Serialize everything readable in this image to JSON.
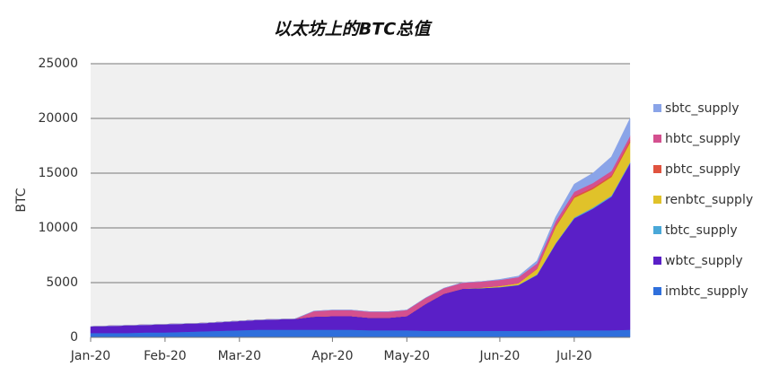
{
  "chart_data": {
    "type": "stacked-area",
    "title": "以太坊上的BTC总值",
    "y_label": "BTC",
    "categories": [
      "Jan-20",
      null,
      null,
      null,
      "Feb-20",
      null,
      null,
      null,
      "Mar-20",
      null,
      null,
      null,
      null,
      "Apr-20",
      null,
      null,
      null,
      "May-20",
      null,
      null,
      null,
      null,
      "Jun-20",
      null,
      null,
      null,
      "Jul-20",
      null,
      null,
      null
    ],
    "series": [
      {
        "name": "imbtc_supply",
        "color": "#2f6fdc",
        "values": [
          400,
          400,
          400,
          450,
          450,
          500,
          550,
          600,
          650,
          700,
          700,
          700,
          700,
          700,
          700,
          650,
          650,
          650,
          600,
          600,
          600,
          600,
          600,
          600,
          600,
          650,
          650,
          650,
          650,
          700
        ]
      },
      {
        "name": "wbtc_supply",
        "color": "#5a1fc7",
        "values": [
          600,
          650,
          700,
          700,
          750,
          750,
          750,
          800,
          850,
          900,
          950,
          1000,
          1200,
          1250,
          1250,
          1150,
          1150,
          1300,
          2450,
          3400,
          3850,
          3900,
          3980,
          4170,
          5100,
          7900,
          10220,
          11100,
          12200,
          15200
        ]
      },
      {
        "name": "tbtc_supply",
        "color": "#4aa8d8",
        "values": [
          0,
          0,
          0,
          0,
          0,
          0,
          0,
          0,
          0,
          0,
          0,
          0,
          0,
          0,
          0,
          0,
          0,
          0,
          0,
          0,
          0,
          0,
          20,
          30,
          50,
          50,
          80,
          100,
          100,
          100
        ]
      },
      {
        "name": "renbtc_supply",
        "color": "#e0c22a",
        "values": [
          0,
          0,
          0,
          0,
          0,
          0,
          0,
          0,
          0,
          0,
          0,
          0,
          0,
          0,
          0,
          0,
          0,
          0,
          0,
          0,
          0,
          50,
          100,
          150,
          500,
          1500,
          1800,
          1700,
          1700,
          1800
        ]
      },
      {
        "name": "pbtc_supply",
        "color": "#e0533f",
        "values": [
          0,
          0,
          0,
          0,
          0,
          0,
          0,
          0,
          0,
          0,
          0,
          0,
          0,
          0,
          0,
          0,
          0,
          0,
          0,
          0,
          0,
          0,
          0,
          0,
          50,
          100,
          150,
          150,
          150,
          200
        ]
      },
      {
        "name": "hbtc_supply",
        "color": "#d4508f",
        "values": [
          0,
          0,
          0,
          0,
          0,
          0,
          0,
          0,
          0,
          0,
          0,
          0,
          500,
          550,
          550,
          550,
          550,
          550,
          550,
          500,
          550,
          550,
          550,
          550,
          450,
          400,
          400,
          400,
          400,
          400
        ]
      },
      {
        "name": "sbtc_supply",
        "color": "#8aa4e8",
        "values": [
          0,
          0,
          0,
          0,
          0,
          0,
          0,
          0,
          0,
          0,
          0,
          0,
          0,
          0,
          0,
          0,
          0,
          0,
          0,
          0,
          0,
          0,
          50,
          100,
          250,
          400,
          700,
          900,
          1300,
          1600
        ]
      }
    ],
    "ylim": [
      0,
      25000
    ],
    "yticks": [
      0,
      5000,
      10000,
      15000,
      20000,
      25000
    ],
    "grid": true
  }
}
